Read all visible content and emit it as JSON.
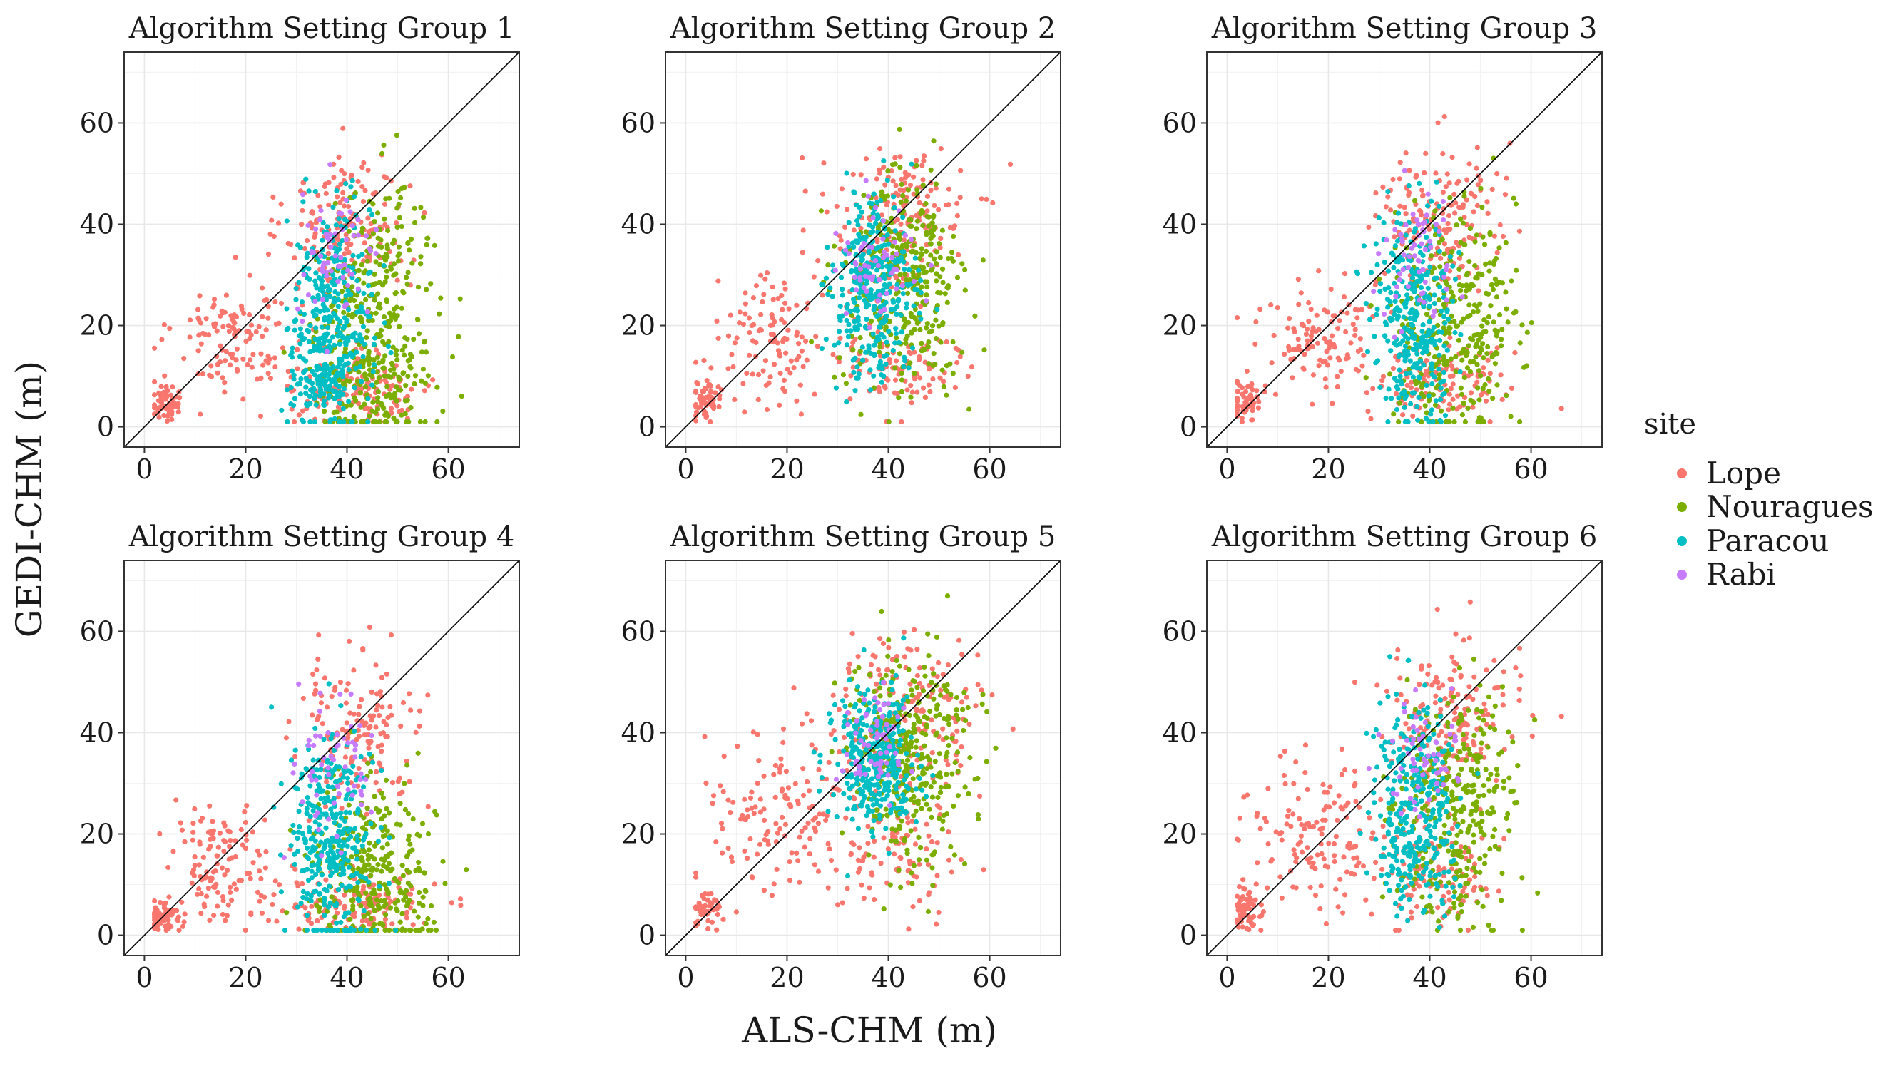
{
  "figure": {
    "shared_x_label": "ALS-CHM (m)",
    "shared_y_label": "GEDI-CHM (m)"
  },
  "legend": {
    "title": "site",
    "placement": "right",
    "items": [
      {
        "label": "Lope",
        "color": "#F8766D"
      },
      {
        "label": "Nouragues",
        "color": "#7CAE00"
      },
      {
        "label": "Paracou",
        "color": "#00BFC4"
      },
      {
        "label": "Rabi",
        "color": "#C77CFF"
      }
    ]
  },
  "chart_data": {
    "type": "scatter",
    "layout": "facet-grid-2x3",
    "xlim": [
      -4,
      74
    ],
    "ylim": [
      -4,
      74
    ],
    "x_ticks": [
      0,
      20,
      40,
      60
    ],
    "y_ticks": [
      0,
      20,
      40,
      60
    ],
    "grid": true,
    "reference_line": {
      "type": "identity",
      "from": [
        -4,
        -4
      ],
      "to": [
        74,
        74
      ]
    },
    "series_order": [
      "Lope",
      "Nouragues",
      "Paracou",
      "Rabi"
    ],
    "cluster_note": "Each facet shows several thousand points; point clouds are reproduced as approximate density clusters per site (centre x, centre y, spread x, spread y, count).",
    "panels": [
      {
        "title": "Algorithm Setting Group 1",
        "clusters": [
          {
            "series": "Lope",
            "cx": 4,
            "cy": 5,
            "sx": 1.5,
            "sy": 2,
            "n": 60
          },
          {
            "series": "Lope",
            "cx": 18,
            "cy": 18,
            "sx": 6,
            "sy": 6,
            "n": 120
          },
          {
            "series": "Lope",
            "cx": 40,
            "cy": 40,
            "sx": 6,
            "sy": 7,
            "n": 160
          },
          {
            "series": "Lope",
            "cx": 42,
            "cy": 8,
            "sx": 8,
            "sy": 4,
            "n": 140
          },
          {
            "series": "Nouragues",
            "cx": 45,
            "cy": 15,
            "sx": 6,
            "sy": 10,
            "n": 320
          },
          {
            "series": "Nouragues",
            "cx": 48,
            "cy": 35,
            "sx": 5,
            "sy": 8,
            "n": 90
          },
          {
            "series": "Paracou",
            "cx": 37,
            "cy": 22,
            "sx": 4,
            "sy": 11,
            "n": 320
          },
          {
            "series": "Paracou",
            "cx": 35,
            "cy": 9,
            "sx": 3,
            "sy": 3,
            "n": 80
          },
          {
            "series": "Rabi",
            "cx": 38,
            "cy": 33,
            "sx": 4,
            "sy": 6,
            "n": 60
          }
        ]
      },
      {
        "title": "Algorithm Setting Group 2",
        "clusters": [
          {
            "series": "Lope",
            "cx": 4,
            "cy": 5,
            "sx": 1.5,
            "sy": 2,
            "n": 60
          },
          {
            "series": "Lope",
            "cx": 18,
            "cy": 18,
            "sx": 6,
            "sy": 6,
            "n": 120
          },
          {
            "series": "Lope",
            "cx": 42,
            "cy": 42,
            "sx": 7,
            "sy": 7,
            "n": 160
          },
          {
            "series": "Lope",
            "cx": 42,
            "cy": 12,
            "sx": 7,
            "sy": 5,
            "n": 100
          },
          {
            "series": "Nouragues",
            "cx": 43,
            "cy": 28,
            "sx": 6,
            "sy": 11,
            "n": 340
          },
          {
            "series": "Paracou",
            "cx": 37,
            "cy": 27,
            "sx": 4,
            "sy": 9,
            "n": 320
          },
          {
            "series": "Rabi",
            "cx": 38,
            "cy": 34,
            "sx": 4,
            "sy": 6,
            "n": 60
          }
        ]
      },
      {
        "title": "Algorithm Setting Group 3",
        "clusters": [
          {
            "series": "Lope",
            "cx": 4,
            "cy": 5,
            "sx": 1.5,
            "sy": 2,
            "n": 60
          },
          {
            "series": "Lope",
            "cx": 18,
            "cy": 18,
            "sx": 6,
            "sy": 6,
            "n": 120
          },
          {
            "series": "Lope",
            "cx": 42,
            "cy": 42,
            "sx": 6,
            "sy": 7,
            "n": 160
          },
          {
            "series": "Lope",
            "cx": 42,
            "cy": 9,
            "sx": 7,
            "sy": 4,
            "n": 120
          },
          {
            "series": "Nouragues",
            "cx": 45,
            "cy": 20,
            "sx": 6,
            "sy": 11,
            "n": 330
          },
          {
            "series": "Paracou",
            "cx": 37,
            "cy": 22,
            "sx": 4,
            "sy": 10,
            "n": 320
          },
          {
            "series": "Rabi",
            "cx": 38,
            "cy": 34,
            "sx": 4,
            "sy": 6,
            "n": 60
          }
        ]
      },
      {
        "title": "Algorithm Setting Group 4",
        "clusters": [
          {
            "series": "Lope",
            "cx": 4,
            "cy": 4,
            "sx": 1.5,
            "sy": 1.5,
            "n": 60
          },
          {
            "series": "Lope",
            "cx": 16,
            "cy": 14,
            "sx": 6,
            "sy": 6,
            "n": 130
          },
          {
            "series": "Lope",
            "cx": 42,
            "cy": 40,
            "sx": 6,
            "sy": 7,
            "n": 150
          },
          {
            "series": "Lope",
            "cx": 42,
            "cy": 6,
            "sx": 8,
            "sy": 3,
            "n": 130
          },
          {
            "series": "Nouragues",
            "cx": 45,
            "cy": 12,
            "sx": 6,
            "sy": 9,
            "n": 330
          },
          {
            "series": "Paracou",
            "cx": 37,
            "cy": 18,
            "sx": 4,
            "sy": 11,
            "n": 330
          },
          {
            "series": "Rabi",
            "cx": 38,
            "cy": 32,
            "sx": 4,
            "sy": 7,
            "n": 60
          }
        ]
      },
      {
        "title": "Algorithm Setting Group 5",
        "clusters": [
          {
            "series": "Lope",
            "cx": 4,
            "cy": 5,
            "sx": 1.5,
            "sy": 2,
            "n": 50
          },
          {
            "series": "Lope",
            "cx": 20,
            "cy": 25,
            "sx": 8,
            "sy": 8,
            "n": 150
          },
          {
            "series": "Lope",
            "cx": 44,
            "cy": 44,
            "sx": 7,
            "sy": 8,
            "n": 170
          },
          {
            "series": "Lope",
            "cx": 42,
            "cy": 17,
            "sx": 6,
            "sy": 6,
            "n": 90
          },
          {
            "series": "Nouragues",
            "cx": 44,
            "cy": 34,
            "sx": 6,
            "sy": 11,
            "n": 340
          },
          {
            "series": "Paracou",
            "cx": 37,
            "cy": 34,
            "sx": 4,
            "sy": 7,
            "n": 320
          },
          {
            "series": "Rabi",
            "cx": 38,
            "cy": 38,
            "sx": 4,
            "sy": 5,
            "n": 60
          }
        ]
      },
      {
        "title": "Algorithm Setting Group 6",
        "clusters": [
          {
            "series": "Lope",
            "cx": 4,
            "cy": 5,
            "sx": 1.5,
            "sy": 2,
            "n": 60
          },
          {
            "series": "Lope",
            "cx": 18,
            "cy": 20,
            "sx": 7,
            "sy": 7,
            "n": 140
          },
          {
            "series": "Lope",
            "cx": 43,
            "cy": 43,
            "sx": 7,
            "sy": 7,
            "n": 160
          },
          {
            "series": "Lope",
            "cx": 42,
            "cy": 12,
            "sx": 6,
            "sy": 5,
            "n": 110
          },
          {
            "series": "Nouragues",
            "cx": 45,
            "cy": 26,
            "sx": 6,
            "sy": 11,
            "n": 330
          },
          {
            "series": "Paracou",
            "cx": 37,
            "cy": 25,
            "sx": 4,
            "sy": 10,
            "n": 320
          },
          {
            "series": "Rabi",
            "cx": 38,
            "cy": 35,
            "sx": 4,
            "sy": 6,
            "n": 60
          }
        ]
      }
    ]
  }
}
